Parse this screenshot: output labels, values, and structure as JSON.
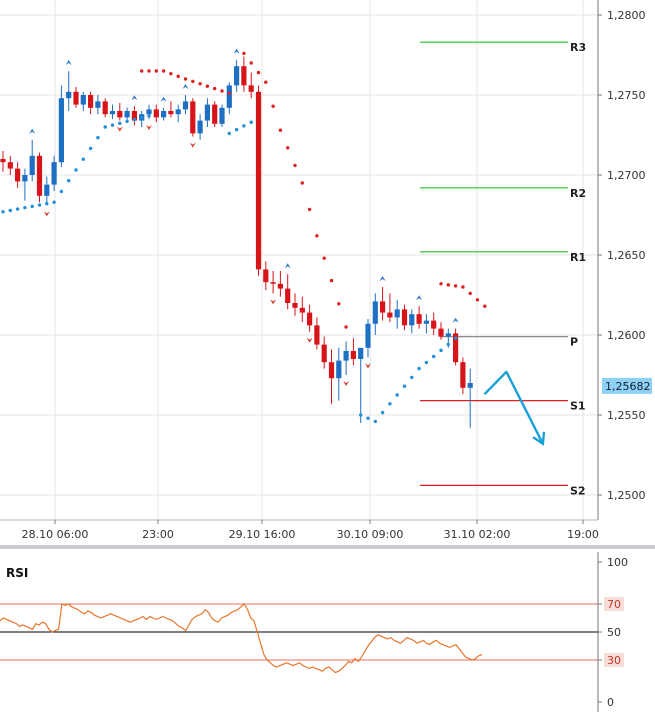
{
  "chart_data": [
    {
      "type": "candlestick",
      "title": "",
      "ylim": [
        1.249,
        1.282
      ],
      "y_ticks": [
        "1,2800",
        "1,2750",
        "1,2700",
        "1,2650",
        "1,2600",
        "1,2550",
        "1,2500"
      ],
      "x_ticks": [
        "28.10 06:00",
        "23:00",
        "29.10 16:00",
        "30.10 09:00",
        "31.10 02:00",
        "19:00"
      ],
      "current_price": "1,25682",
      "pivot_levels": [
        {
          "name": "R3",
          "value": 1.2783,
          "color": "#22c322"
        },
        {
          "name": "R2",
          "value": 1.2692,
          "color": "#22c322"
        },
        {
          "name": "R1",
          "value": 1.2652,
          "color": "#22c322"
        },
        {
          "name": "P",
          "value": 1.2599,
          "color": "#8c8c8c"
        },
        {
          "name": "S1",
          "value": 1.2559,
          "color": "#e02020"
        },
        {
          "name": "S2",
          "value": 1.2506,
          "color": "#e02020"
        }
      ],
      "candles": [
        [
          1.271,
          1.2715,
          1.2702,
          1.2708
        ],
        [
          1.2708,
          1.2712,
          1.27,
          1.2704
        ],
        [
          1.2704,
          1.2708,
          1.2692,
          1.2696
        ],
        [
          1.2696,
          1.2704,
          1.2684,
          1.27
        ],
        [
          1.27,
          1.2722,
          1.2696,
          1.2712
        ],
        [
          1.2712,
          1.2714,
          1.2683,
          1.2687
        ],
        [
          1.2687,
          1.2699,
          1.2681,
          1.2694
        ],
        [
          1.2694,
          1.2712,
          1.269,
          1.2708
        ],
        [
          1.2708,
          1.2756,
          1.2705,
          1.2748
        ],
        [
          1.2748,
          1.2765,
          1.274,
          1.2752
        ],
        [
          1.2752,
          1.2755,
          1.2742,
          1.2744
        ],
        [
          1.2744,
          1.2752,
          1.274,
          1.275
        ],
        [
          1.275,
          1.2752,
          1.2738,
          1.2742
        ],
        [
          1.2742,
          1.275,
          1.2738,
          1.2746
        ],
        [
          1.2746,
          1.2748,
          1.2736,
          1.2738
        ],
        [
          1.2738,
          1.2744,
          1.2735,
          1.274
        ],
        [
          1.274,
          1.2745,
          1.2734,
          1.2736
        ],
        [
          1.2736,
          1.2742,
          1.2733,
          1.274
        ],
        [
          1.274,
          1.2743,
          1.2731,
          1.2734
        ],
        [
          1.2734,
          1.274,
          1.273,
          1.2738
        ],
        [
          1.2738,
          1.2744,
          1.2735,
          1.2741
        ],
        [
          1.2741,
          1.2744,
          1.2733,
          1.2736
        ],
        [
          1.2736,
          1.2742,
          1.2734,
          1.274
        ],
        [
          1.274,
          1.2746,
          1.2736,
          1.2738
        ],
        [
          1.2738,
          1.2744,
          1.2733,
          1.2741
        ],
        [
          1.2741,
          1.275,
          1.2738,
          1.2746
        ],
        [
          1.2746,
          1.2748,
          1.2724,
          1.2726
        ],
        [
          1.2726,
          1.2738,
          1.2722,
          1.2734
        ],
        [
          1.2734,
          1.2748,
          1.273,
          1.2744
        ],
        [
          1.2744,
          1.2746,
          1.273,
          1.2732
        ],
        [
          1.2732,
          1.2744,
          1.273,
          1.2742
        ],
        [
          1.2742,
          1.2758,
          1.2738,
          1.2756
        ],
        [
          1.2756,
          1.2772,
          1.2752,
          1.2768
        ],
        [
          1.2768,
          1.2774,
          1.2752,
          1.2756
        ],
        [
          1.2756,
          1.2764,
          1.2748,
          1.2752
        ],
        [
          1.2752,
          1.2756,
          1.2637,
          1.2641
        ],
        [
          1.2641,
          1.2646,
          1.2628,
          1.2633
        ],
        [
          1.2633,
          1.264,
          1.2626,
          1.2632
        ],
        [
          1.2632,
          1.264,
          1.2624,
          1.2629
        ],
        [
          1.2629,
          1.2638,
          1.2616,
          1.262
        ],
        [
          1.262,
          1.2626,
          1.2612,
          1.2617
        ],
        [
          1.2617,
          1.2624,
          1.2608,
          1.2614
        ],
        [
          1.2614,
          1.2619,
          1.2602,
          1.2606
        ],
        [
          1.2606,
          1.2611,
          1.2591,
          1.2594
        ],
        [
          1.2594,
          1.2599,
          1.2579,
          1.2583
        ],
        [
          1.2583,
          1.2591,
          1.2557,
          1.2573
        ],
        [
          1.2573,
          1.2592,
          1.2559,
          1.2584
        ],
        [
          1.2584,
          1.2596,
          1.2575,
          1.259
        ],
        [
          1.259,
          1.2598,
          1.2581,
          1.2585
        ],
        [
          1.2585,
          1.2589,
          1.2545,
          1.2592
        ],
        [
          1.2592,
          1.261,
          1.2586,
          1.2607
        ],
        [
          1.2607,
          1.2626,
          1.26,
          1.2621
        ],
        [
          1.2621,
          1.263,
          1.2609,
          1.2614
        ],
        [
          1.2614,
          1.2626,
          1.2608,
          1.2611
        ],
        [
          1.2611,
          1.2622,
          1.2604,
          1.2616
        ],
        [
          1.2616,
          1.2619,
          1.2603,
          1.2606
        ],
        [
          1.2606,
          1.2616,
          1.2601,
          1.2613
        ],
        [
          1.2613,
          1.2618,
          1.2604,
          1.2607
        ],
        [
          1.2607,
          1.2613,
          1.2601,
          1.2609
        ],
        [
          1.2609,
          1.2614,
          1.26,
          1.2604
        ],
        [
          1.2604,
          1.2608,
          1.2597,
          1.2599
        ],
        [
          1.2599,
          1.2604,
          1.2592,
          1.2601
        ],
        [
          1.2601,
          1.2604,
          1.2581,
          1.2583
        ],
        [
          1.2583,
          1.2586,
          1.2563,
          1.2567
        ],
        [
          1.2567,
          1.2579,
          1.2542,
          1.257
        ]
      ],
      "parabolic_sar": [
        {
          "x_index": 0,
          "value": 1.2677
        },
        {
          "x_index": 7,
          "value": 1.2683
        },
        {
          "x_index": 14,
          "value": 1.273
        },
        {
          "x_index": 20,
          "value": 1.2737
        },
        {
          "x_index": 22,
          "value": 1.2765
        },
        {
          "x_index": 31,
          "value": 1.2755
        },
        {
          "x_index": 31,
          "value": 1.2726
        },
        {
          "x_index": 34,
          "value": 1.2733
        },
        {
          "x_index": 33,
          "value": 1.2776
        },
        {
          "x_index": 36,
          "value": 1.2758
        },
        {
          "x_index": 38,
          "value": 1.2728
        },
        {
          "x_index": 41,
          "value": 1.2695
        },
        {
          "x_index": 43,
          "value": 1.2662
        },
        {
          "x_index": 45,
          "value": 1.2634
        },
        {
          "x_index": 47,
          "value": 1.2605
        },
        {
          "x_index": 49,
          "value": 1.255
        },
        {
          "x_index": 51,
          "value": 1.2546
        },
        {
          "x_index": 57,
          "value": 1.2579
        },
        {
          "x_index": 62,
          "value": 1.2598
        },
        {
          "x_index": 60,
          "value": 1.2632
        },
        {
          "x_index": 63,
          "value": 1.263
        },
        {
          "x_index": 66,
          "value": 1.2618
        }
      ],
      "forecast_arrow": {
        "points": [
          [
            65,
            1.2563
          ],
          [
            68,
            1.2577
          ],
          [
            73,
            1.2532
          ]
        ],
        "color": "#1ba0d6"
      }
    },
    {
      "type": "line",
      "title": "RSI",
      "ylim": [
        0,
        100
      ],
      "y_ticks": [
        "100",
        "70",
        "50",
        "30",
        "0"
      ],
      "levels": [
        {
          "value": 70,
          "label": "70",
          "color": "#e46c5a"
        },
        {
          "value": 50,
          "label": "50",
          "color": "#000000"
        },
        {
          "value": 30,
          "label": "30",
          "color": "#e46c5a"
        }
      ],
      "series": [
        {
          "color": "#e9762b",
          "values": [
            58,
            60,
            59,
            58,
            57,
            56,
            54,
            55,
            54,
            53,
            52,
            56,
            55,
            57,
            56,
            52,
            50,
            51,
            52,
            70,
            69,
            70,
            68,
            67,
            66,
            64,
            63,
            65,
            64,
            62,
            61,
            60,
            61,
            62,
            63,
            62,
            61,
            60,
            59,
            58,
            57,
            58,
            59,
            60,
            61,
            59,
            61,
            60,
            59,
            60,
            61,
            60,
            59,
            58,
            56,
            54,
            53,
            51,
            55,
            59,
            61,
            62,
            63,
            66,
            64,
            60,
            58,
            57,
            60,
            61,
            62,
            64,
            65,
            66,
            68,
            70,
            66,
            60,
            58,
            50,
            42,
            34,
            30,
            28,
            26,
            25,
            26,
            27,
            28,
            27,
            26,
            27,
            28,
            26,
            25,
            24,
            25,
            24,
            23,
            22,
            24,
            25,
            23,
            21,
            22,
            24,
            26,
            29,
            28,
            31,
            29,
            32,
            36,
            40,
            43,
            46,
            48,
            47,
            46,
            45,
            46,
            44,
            43,
            42,
            44,
            46,
            45,
            44,
            42,
            43,
            44,
            42,
            41,
            43,
            44,
            42,
            41,
            40,
            39,
            40,
            41,
            38,
            35,
            32,
            31,
            30,
            31,
            33,
            34
          ]
        }
      ]
    }
  ]
}
